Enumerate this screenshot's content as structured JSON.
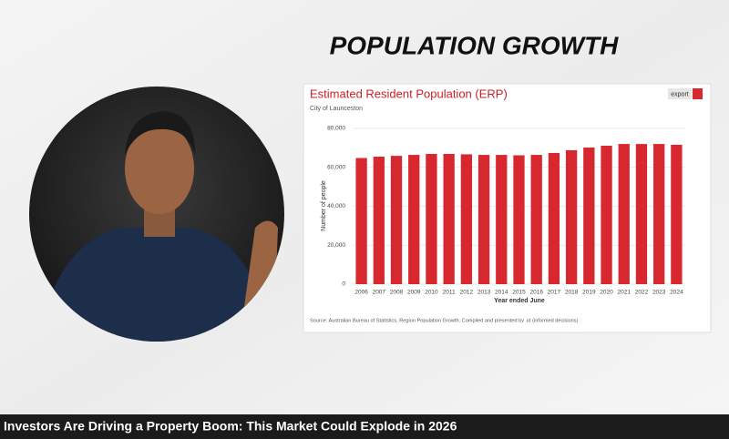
{
  "video_title": "Investors Are Driving a Property Boom: This Market Could Explode in 2026",
  "heading": "POPULATION GROWTH",
  "chart_data": {
    "type": "bar",
    "title": "Estimated Resident Population (ERP)",
    "subtitle": "City of Launceston",
    "export_label": "export",
    "ylabel": "Number of people",
    "xlabel": "Year ended June",
    "source": "Source: Australian Bureau of Statistics, Region Population Growth. Compiled and presented by .id (informed decisions)",
    "categories": [
      "2006",
      "2007",
      "2008",
      "2009",
      "2010",
      "2011",
      "2012",
      "2013",
      "2014",
      "2015",
      "2016",
      "2017",
      "2018",
      "2019",
      "2020",
      "2021",
      "2022",
      "2023",
      "2024"
    ],
    "values": [
      64800,
      65500,
      65900,
      66400,
      66900,
      66900,
      66700,
      66400,
      66400,
      66200,
      66400,
      67400,
      68800,
      70200,
      71100,
      72000,
      72000,
      72000,
      71600
    ],
    "color": "#d7282f",
    "ylim": [
      0,
      80000
    ],
    "yticks": [
      0,
      {
        "value": 20000,
        "label": "20,000"
      },
      {
        "value": 40000,
        "label": "40,000"
      },
      {
        "value": 60000,
        "label": "60,000"
      },
      {
        "value": 80000,
        "label": "80,000"
      }
    ],
    "grid": true
  }
}
